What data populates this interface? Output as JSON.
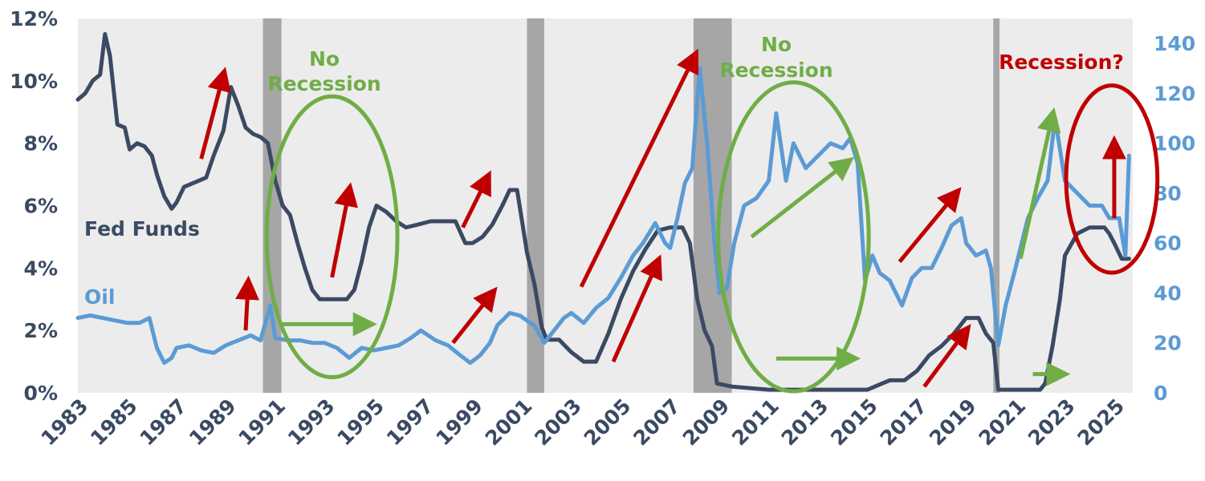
{
  "chart_data": {
    "type": "line",
    "title": "",
    "colors": {
      "fed": "#3b4a63",
      "oil": "#5b9bd5",
      "recession": "#a6a6a6",
      "plot_bg": "#ececec",
      "up": "#c00000",
      "flat": "#70ad47"
    },
    "xlim": [
      1983,
      2025.75
    ],
    "ylim_left": [
      0,
      12
    ],
    "ylim_right": [
      0,
      150
    ],
    "x_ticks": [
      "1983",
      "1985",
      "1987",
      "1989",
      "1991",
      "1993",
      "1995",
      "1997",
      "1999",
      "2001",
      "2003",
      "2005",
      "2007",
      "2009",
      "2011",
      "2013",
      "2015",
      "2017",
      "2019",
      "2021",
      "2023",
      "2025"
    ],
    "y_left_ticks": [
      "0%",
      "2%",
      "4%",
      "6%",
      "8%",
      "10%",
      "12%"
    ],
    "y_right_ticks": [
      "0",
      "20",
      "40",
      "60",
      "80",
      "100",
      "120",
      "140"
    ],
    "recessions": [
      [
        1990.5,
        1991.25
      ],
      [
        2001.2,
        2001.9
      ],
      [
        2007.95,
        2009.5
      ],
      [
        2020.1,
        2020.35
      ]
    ],
    "series": [
      {
        "name": "Fed Funds",
        "axis": "left",
        "color": "#3b4a63",
        "x": [
          1983.0,
          1983.3,
          1983.6,
          1983.9,
          1984.1,
          1984.3,
          1984.6,
          1984.9,
          1985.1,
          1985.4,
          1985.7,
          1986.0,
          1986.2,
          1986.5,
          1986.8,
          1987.0,
          1987.3,
          1987.6,
          1987.9,
          1988.2,
          1988.5,
          1988.9,
          1989.2,
          1989.5,
          1989.8,
          1990.1,
          1990.4,
          1990.7,
          1991.0,
          1991.3,
          1991.6,
          1991.9,
          1992.2,
          1992.5,
          1992.8,
          1993.1,
          1993.5,
          1993.9,
          1994.2,
          1994.5,
          1994.8,
          1995.1,
          1995.5,
          1995.9,
          1996.3,
          1996.8,
          1997.3,
          1997.8,
          1998.3,
          1998.7,
          1999.0,
          1999.4,
          1999.8,
          2000.2,
          2000.5,
          2000.8,
          2001.0,
          2001.2,
          2001.5,
          2001.8,
          2002.0,
          2002.5,
          2003.0,
          2003.5,
          2004.0,
          2004.5,
          2005.0,
          2005.5,
          2006.0,
          2006.5,
          2007.0,
          2007.5,
          2007.8,
          2008.1,
          2008.4,
          2008.7,
          2008.9,
          2009.5,
          2011.0,
          2013.0,
          2015.0,
          2015.9,
          2016.5,
          2017.0,
          2017.5,
          2018.0,
          2018.5,
          2019.0,
          2019.5,
          2019.8,
          2020.1,
          2020.3,
          2021.0,
          2022.0,
          2022.2,
          2022.5,
          2022.8,
          2023.0,
          2023.5,
          2024.0,
          2024.6,
          2024.8,
          2025.0,
          2025.3,
          2025.6
        ],
        "values": [
          9.4,
          9.6,
          10.0,
          10.2,
          11.5,
          10.8,
          8.6,
          8.5,
          7.8,
          8.0,
          7.9,
          7.6,
          7.0,
          6.3,
          5.9,
          6.1,
          6.6,
          6.7,
          6.8,
          6.9,
          7.6,
          8.4,
          9.8,
          9.2,
          8.5,
          8.3,
          8.2,
          8.0,
          6.8,
          6.0,
          5.7,
          4.8,
          4.0,
          3.3,
          3.0,
          3.0,
          3.0,
          3.0,
          3.3,
          4.2,
          5.3,
          6.0,
          5.8,
          5.5,
          5.3,
          5.4,
          5.5,
          5.5,
          5.5,
          4.8,
          4.8,
          5.0,
          5.4,
          6.0,
          6.5,
          6.5,
          5.5,
          4.5,
          3.5,
          2.1,
          1.7,
          1.7,
          1.3,
          1.0,
          1.0,
          1.9,
          3.0,
          3.9,
          4.6,
          5.2,
          5.3,
          5.3,
          4.8,
          3.0,
          2.0,
          1.5,
          0.3,
          0.2,
          0.1,
          0.1,
          0.1,
          0.4,
          0.4,
          0.7,
          1.2,
          1.5,
          1.9,
          2.4,
          2.4,
          1.9,
          1.6,
          0.1,
          0.1,
          0.1,
          0.3,
          1.5,
          3.0,
          4.4,
          5.1,
          5.3,
          5.3,
          5.1,
          4.8,
          4.3,
          4.3
        ]
      },
      {
        "name": "Oil",
        "axis": "right",
        "color": "#5b9bd5",
        "x": [
          1983.0,
          1983.5,
          1984.0,
          1984.5,
          1985.0,
          1985.5,
          1985.9,
          1986.2,
          1986.5,
          1986.8,
          1987.0,
          1987.5,
          1988.0,
          1988.5,
          1989.0,
          1989.5,
          1990.0,
          1990.4,
          1990.8,
          1991.0,
          1991.5,
          1992.0,
          1992.5,
          1993.0,
          1993.5,
          1994.0,
          1994.5,
          1995.0,
          1995.5,
          1996.0,
          1996.5,
          1996.9,
          1997.5,
          1998.0,
          1998.5,
          1998.9,
          1999.3,
          1999.7,
          2000.0,
          2000.5,
          2000.9,
          2001.5,
          2001.9,
          2002.3,
          2002.7,
          2003.0,
          2003.5,
          2004.0,
          2004.5,
          2005.0,
          2005.5,
          2005.9,
          2006.4,
          2006.8,
          2007.0,
          2007.3,
          2007.6,
          2007.9,
          2008.2,
          2008.5,
          2008.8,
          2009.0,
          2009.3,
          2009.6,
          2010.0,
          2010.5,
          2011.0,
          2011.3,
          2011.7,
          2012.0,
          2012.5,
          2013.0,
          2013.5,
          2014.0,
          2014.3,
          2014.6,
          2014.9,
          2015.2,
          2015.5,
          2015.9,
          2016.4,
          2016.8,
          2017.2,
          2017.6,
          2018.0,
          2018.4,
          2018.8,
          2019.0,
          2019.4,
          2019.8,
          2020.0,
          2020.3,
          2020.6,
          2021.0,
          2021.5,
          2021.9,
          2022.3,
          2022.6,
          2023.0,
          2023.5,
          2024.0,
          2024.5,
          2024.8,
          2025.2,
          2025.45,
          2025.6
        ],
        "values": [
          30,
          31,
          30,
          29,
          28,
          28,
          30,
          18,
          12,
          14,
          18,
          19,
          17,
          16,
          19,
          21,
          23,
          21,
          35,
          22,
          21,
          21,
          20,
          20,
          18,
          14,
          18,
          17,
          18,
          19,
          22,
          25,
          21,
          19,
          15,
          12,
          15,
          20,
          27,
          32,
          31,
          27,
          20,
          25,
          30,
          32,
          28,
          34,
          38,
          46,
          55,
          60,
          68,
          60,
          58,
          70,
          84,
          90,
          130,
          100,
          60,
          40,
          42,
          60,
          75,
          78,
          85,
          112,
          85,
          100,
          90,
          95,
          100,
          98,
          102,
          92,
          45,
          55,
          48,
          45,
          35,
          46,
          50,
          50,
          58,
          67,
          70,
          60,
          55,
          57,
          50,
          19,
          35,
          50,
          70,
          78,
          85,
          110,
          85,
          80,
          75,
          75,
          70,
          70,
          55,
          95
        ]
      }
    ],
    "labels": {
      "fed": "Fed Funds",
      "oil": "Oil",
      "no_rec1_a": "No",
      "no_rec1_b": "Recession",
      "no_rec2_a": "No",
      "no_rec2_b": "Recession",
      "rec_q": "Recession?"
    },
    "arrows": [
      {
        "type": "up",
        "from": [
          1988.0,
          7.5
        ],
        "to": [
          1988.9,
          10.2
        ]
      },
      {
        "type": "up",
        "from": [
          1989.8,
          2.0
        ],
        "to": [
          1989.9,
          3.5
        ]
      },
      {
        "type": "up",
        "from": [
          1993.3,
          3.7
        ],
        "to": [
          1994.0,
          6.5
        ]
      },
      {
        "type": "up",
        "from": [
          1998.6,
          5.3
        ],
        "to": [
          1999.6,
          6.9
        ]
      },
      {
        "type": "up",
        "from": [
          1998.2,
          1.6
        ],
        "to": [
          1999.8,
          3.2
        ]
      },
      {
        "type": "up",
        "from": [
          2003.4,
          3.4
        ],
        "to": [
          2008.0,
          10.8
        ]
      },
      {
        "type": "up",
        "from": [
          2004.7,
          1.0
        ],
        "to": [
          2006.5,
          4.2
        ]
      },
      {
        "type": "up",
        "from": [
          2016.3,
          4.2
        ],
        "to": [
          2018.6,
          6.4
        ]
      },
      {
        "type": "up",
        "from": [
          2017.3,
          0.2
        ],
        "to": [
          2019.0,
          2.0
        ]
      },
      {
        "type": "up",
        "from": [
          2025.0,
          5.6
        ],
        "to": [
          2025.0,
          8.0
        ]
      },
      {
        "type": "flat",
        "from": [
          1991.3,
          2.2
        ],
        "to": [
          1994.8,
          2.2
        ]
      },
      {
        "type": "flat",
        "from": [
          2010.3,
          5.0
        ],
        "to": [
          2014.2,
          7.4
        ]
      },
      {
        "type": "flat",
        "from": [
          2011.3,
          1.1
        ],
        "to": [
          2014.4,
          1.1
        ]
      },
      {
        "type": "flat",
        "from": [
          2021.2,
          4.3
        ],
        "to": [
          2022.5,
          8.9
        ]
      },
      {
        "type": "flat",
        "from": [
          2021.7,
          0.6
        ],
        "to": [
          2022.9,
          0.6
        ]
      }
    ],
    "ellipses": [
      {
        "type": "flat",
        "center": [
          1993.3,
          5.0
        ],
        "rx_years": 2.65,
        "ry_pct": 4.5
      },
      {
        "type": "flat",
        "center": [
          2012.0,
          5.0
        ],
        "rx_years": 3.05,
        "ry_pct": 4.95
      },
      {
        "type": "up",
        "center": [
          2024.9,
          6.85
        ],
        "rx_years": 1.85,
        "ry_pct": 3.0
      }
    ]
  }
}
